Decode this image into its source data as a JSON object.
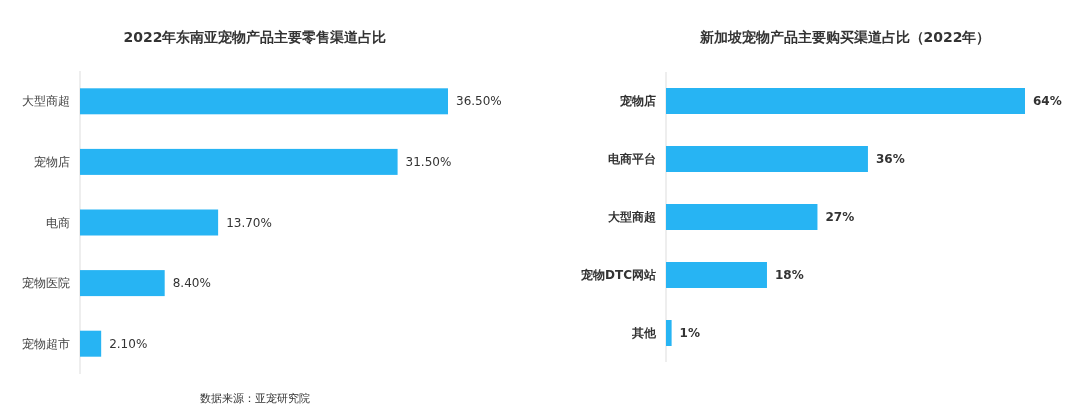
{
  "chart_data": [
    {
      "type": "bar",
      "orientation": "horizontal",
      "title": "2022年东南亚宠物产品主要零售渠道占比",
      "categories": [
        "大型商超",
        "宠物店",
        "电商",
        "宠物医院",
        "宠物超市"
      ],
      "values": [
        36.5,
        31.5,
        13.7,
        8.4,
        2.1
      ],
      "value_labels": [
        "36.50%",
        "31.50%",
        "13.70%",
        "8.40%",
        "2.10%"
      ],
      "color": "#27b4f3",
      "annotations": [
        "数据来源：亚宠研究院"
      ]
    },
    {
      "type": "bar",
      "orientation": "horizontal",
      "title": "新加坡宠物产品主要购买渠道占比（2022年）",
      "categories": [
        "宠物店",
        "电商平台",
        "大型商超",
        "宠物DTC网站",
        "其他"
      ],
      "values": [
        64,
        36,
        27,
        18,
        1
      ],
      "value_labels": [
        "64%",
        "36%",
        "27%",
        "18%",
        "1%"
      ],
      "color": "#27b4f3"
    }
  ]
}
